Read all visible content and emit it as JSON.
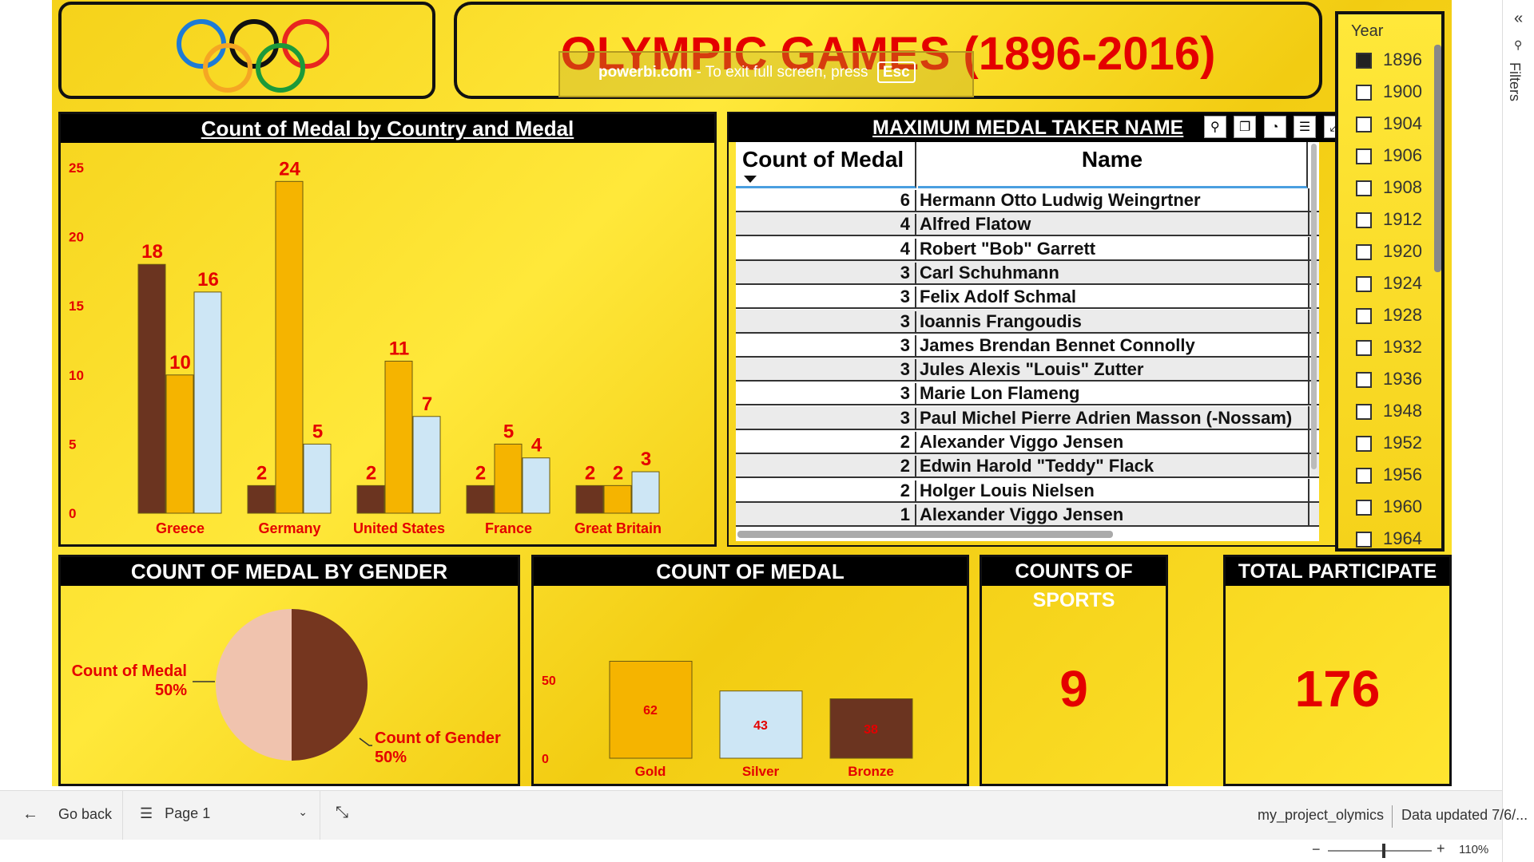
{
  "title": "OLYMPIC GAMES (1896-2016)",
  "toast": {
    "site": "powerbi.com",
    "message": "To exit full screen, press",
    "key": "Esc"
  },
  "country_chart": {
    "header": "Count of Medal by Country and Medal",
    "yticks": [
      "0",
      "5",
      "10",
      "15",
      "20",
      "25"
    ]
  },
  "table": {
    "header": "MAXIMUM MEDAL TAKER NAME",
    "col_count": "Count of Medal",
    "col_name": "Name",
    "rows": [
      {
        "count": "6",
        "name": "Hermann Otto Ludwig Weingrtner"
      },
      {
        "count": "4",
        "name": "Alfred Flatow"
      },
      {
        "count": "4",
        "name": "Robert \"Bob\" Garrett"
      },
      {
        "count": "3",
        "name": "Carl Schuhmann"
      },
      {
        "count": "3",
        "name": "Felix Adolf Schmal"
      },
      {
        "count": "3",
        "name": "Ioannis Frangoudis"
      },
      {
        "count": "3",
        "name": "James Brendan Bennet Connolly"
      },
      {
        "count": "3",
        "name": "Jules Alexis \"Louis\" Zutter"
      },
      {
        "count": "3",
        "name": "Marie Lon Flameng"
      },
      {
        "count": "3",
        "name": "Paul Michel Pierre Adrien Masson (-Nossam)"
      },
      {
        "count": "2",
        "name": "Alexander Viggo Jensen"
      },
      {
        "count": "2",
        "name": "Edwin Harold \"Teddy\" Flack"
      },
      {
        "count": "2",
        "name": "Holger Louis Nielsen"
      },
      {
        "count": "1",
        "name": "Alexander Viggo Jensen"
      }
    ]
  },
  "slicer": {
    "title": "Year",
    "years": [
      "1896",
      "1900",
      "1904",
      "1906",
      "1908",
      "1912",
      "1920",
      "1924",
      "1928",
      "1932",
      "1936",
      "1948",
      "1952",
      "1956",
      "1960",
      "1964"
    ],
    "selected": "1896"
  },
  "gender": {
    "header": "COUNT OF MEDAL BY GENDER",
    "label1": "Count of Medal",
    "pct1": "50%",
    "label2": "Count of Gender",
    "pct2": "50%"
  },
  "medal": {
    "header": "COUNT OF MEDAL",
    "yticks": [
      "0",
      "50"
    ]
  },
  "sports": {
    "header": "COUNTS OF SPORTS",
    "value": "9"
  },
  "participants": {
    "header": "TOTAL PARTICIPATE",
    "value": "176"
  },
  "filters_label": "Filters",
  "bottom": {
    "go_back": "Go back",
    "page": "Page 1",
    "report": "my_project_olymics",
    "updated": "Data updated 7/6/...",
    "zoom": "110%"
  },
  "colors": {
    "gold": "#f5b400",
    "silver": "#cde6f5",
    "bronze": "#6b3420",
    "accent": "#e40000",
    "pie_light": "#f0c3ae",
    "pie_dark": "#75361f"
  },
  "chart_data": [
    {
      "type": "bar",
      "title": "Count of Medal by Country and Medal",
      "categories": [
        "Greece",
        "Germany",
        "United States",
        "France",
        "Great Britain"
      ],
      "series": [
        {
          "values": [
            18,
            2,
            2,
            2,
            2
          ]
        },
        {
          "values": [
            10,
            24,
            11,
            5,
            2
          ]
        },
        {
          "values": [
            16,
            5,
            7,
            4,
            3
          ]
        }
      ],
      "ylim": [
        0,
        25
      ]
    },
    {
      "type": "bar",
      "title": "COUNT OF MEDAL",
      "categories": [
        "Gold",
        "Silver",
        "Bronze"
      ],
      "values": [
        62,
        43,
        38
      ],
      "ylim": [
        0,
        80
      ]
    },
    {
      "type": "pie",
      "title": "COUNT OF MEDAL BY GENDER",
      "labels": [
        "Count of Medal",
        "Count of Gender"
      ],
      "values": [
        50,
        50
      ]
    }
  ]
}
